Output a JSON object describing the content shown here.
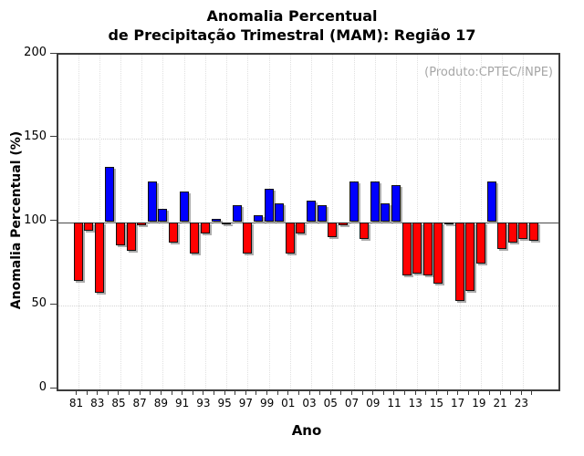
{
  "chart_data": {
    "type": "bar",
    "title": "Anomalia Percentual de Precipitação Trimestral (MAM): Região 17",
    "title_line1": "Anomalia Percentual",
    "title_line2": "de Precipitação Trimestral (MAM): Região 17",
    "annotation": "(Produto:CPTEC/INPE)",
    "xlabel": "Ano",
    "ylabel": "Anomalia Percentual (%)",
    "ylim": [
      0,
      200
    ],
    "yticks": [
      0,
      50,
      100,
      150,
      200
    ],
    "baseline": 100,
    "grid": true,
    "legend": null,
    "xtick_labels": [
      "81",
      "83",
      "85",
      "87",
      "89",
      "91",
      "93",
      "95",
      "97",
      "99",
      "01",
      "03",
      "05",
      "07",
      "09",
      "11",
      "13",
      "15",
      "17",
      "19",
      "21",
      "23"
    ],
    "years": [
      1981,
      1982,
      1983,
      1984,
      1985,
      1986,
      1987,
      1988,
      1989,
      1990,
      1991,
      1992,
      1993,
      1994,
      1995,
      1996,
      1997,
      1998,
      1999,
      2000,
      2001,
      2002,
      2003,
      2004,
      2005,
      2006,
      2007,
      2008,
      2009,
      2010,
      2011,
      2012,
      2013,
      2014,
      2015,
      2016,
      2017,
      2018,
      2019,
      2020,
      2021,
      2022,
      2023,
      2024
    ],
    "values": [
      65,
      95,
      58,
      133,
      86,
      83,
      98,
      124,
      108,
      88,
      118,
      81,
      93,
      102,
      100,
      110,
      81,
      104,
      120,
      111,
      81,
      93,
      113,
      110,
      91,
      98,
      124,
      90,
      124,
      111,
      122,
      68,
      69,
      68,
      63,
      100,
      53,
      59,
      75,
      124,
      84,
      88,
      90,
      89
    ],
    "colors": {
      "above_baseline": "#0000ff",
      "below_baseline": "#ff0000",
      "bar_border": "#111111",
      "baseline_line": "#4a4a4a",
      "grid": "#d4d4d4",
      "axis": "#3c3c3c",
      "annotation": "#a6a6a6"
    }
  }
}
